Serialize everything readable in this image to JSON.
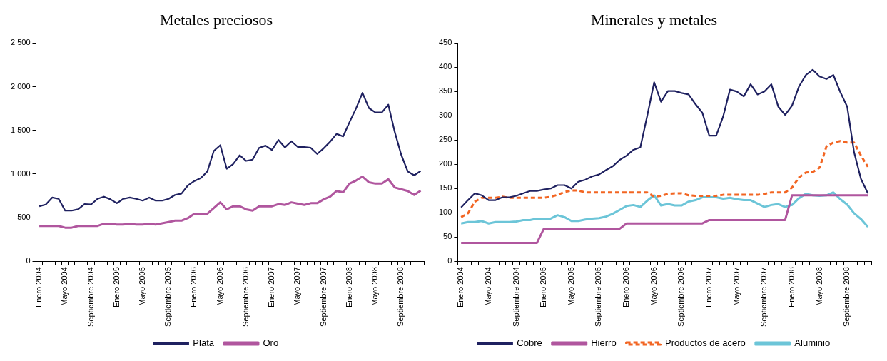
{
  "chart_data": [
    {
      "type": "line",
      "title": "Metales preciosos",
      "categories": [
        "Enero 2004",
        null,
        null,
        null,
        "Mayo 2004",
        null,
        null,
        null,
        "Septiembre 2004",
        null,
        null,
        null,
        "Enero 2005",
        null,
        null,
        null,
        "Mayo 2005",
        null,
        null,
        null,
        "Septiembre 2005",
        null,
        null,
        null,
        "Enero 2006",
        null,
        null,
        null,
        "Mayo 2006",
        null,
        null,
        null,
        "Septiembre 2006",
        null,
        null,
        null,
        "Enero 2007",
        null,
        null,
        null,
        "Mayo 2007",
        null,
        null,
        null,
        "Septiembre 2007",
        null,
        null,
        null,
        "Enero 2008",
        null,
        null,
        null,
        "Mayo 2008",
        null,
        null,
        null,
        "Septiembre 2008",
        null,
        null,
        null
      ],
      "series": [
        {
          "name": "Plata",
          "color": "#1f2160",
          "values": [
            630,
            650,
            730,
            715,
            580,
            580,
            595,
            655,
            650,
            715,
            740,
            710,
            665,
            715,
            730,
            715,
            695,
            730,
            695,
            695,
            715,
            760,
            775,
            870,
            920,
            955,
            1030,
            1265,
            1330,
            1060,
            1115,
            1215,
            1150,
            1165,
            1300,
            1325,
            1275,
            1390,
            1305,
            1375,
            1310,
            1310,
            1300,
            1230,
            1295,
            1370,
            1460,
            1430,
            1595,
            1750,
            1930,
            1755,
            1705,
            1705,
            1795,
            1480,
            1220,
            1030,
            985,
            1035
          ]
        },
        {
          "name": "Oro",
          "color": "#b0569e",
          "values": [
            405,
            405,
            405,
            405,
            385,
            385,
            405,
            405,
            405,
            405,
            430,
            430,
            420,
            420,
            430,
            420,
            420,
            430,
            420,
            435,
            450,
            465,
            465,
            495,
            545,
            545,
            545,
            610,
            675,
            595,
            630,
            630,
            595,
            580,
            630,
            630,
            630,
            655,
            645,
            675,
            660,
            645,
            665,
            665,
            710,
            740,
            805,
            790,
            890,
            925,
            970,
            905,
            890,
            890,
            940,
            845,
            825,
            805,
            760,
            810
          ]
        }
      ],
      "ylim": [
        0,
        2500
      ],
      "yticks": [
        0,
        500,
        {
          "value": 1000,
          "label": "1 000"
        },
        {
          "value": 1500,
          "label": "1 500"
        },
        {
          "value": 2000,
          "label": "2 000"
        },
        {
          "value": 2500,
          "label": "2 500"
        }
      ],
      "grid": false,
      "legend": "bottom",
      "marker": "none",
      "line_style": "solid"
    },
    {
      "type": "line",
      "title": "Minerales y metales",
      "categories": [
        "Enero 2004",
        null,
        null,
        null,
        "Mayo 2004",
        null,
        null,
        null,
        "Septiembre 2004",
        null,
        null,
        null,
        "Enero 2005",
        null,
        null,
        null,
        "Mayo 2005",
        null,
        null,
        null,
        "Septiembre 2005",
        null,
        null,
        null,
        "Enero 2006",
        null,
        null,
        null,
        "Mayo 2006",
        null,
        null,
        null,
        "Septiembre 2006",
        null,
        null,
        null,
        "Enero 2007",
        null,
        null,
        null,
        "Mayo 2007",
        null,
        null,
        null,
        "Septiembre 2007",
        null,
        null,
        null,
        "Enero 2008",
        null,
        null,
        null,
        "Mayo 2008",
        null,
        null,
        null,
        "Septiembre 2008",
        null,
        null,
        null
      ],
      "series": [
        {
          "name": "Cobre",
          "color": "#1f2160",
          "values": [
            111,
            126,
            140,
            136,
            126,
            126,
            132,
            132,
            135,
            140,
            145,
            145,
            148,
            150,
            157,
            157,
            150,
            164,
            168,
            175,
            179,
            188,
            196,
            209,
            218,
            230,
            235,
            300,
            369,
            329,
            351,
            351,
            347,
            344,
            324,
            306,
            259,
            259,
            298,
            354,
            350,
            340,
            365,
            344,
            350,
            365,
            319,
            302,
            321,
            360,
            384,
            395,
            381,
            376,
            384,
            349,
            319,
            225,
            170,
            140
          ]
        },
        {
          "name": "Hierro",
          "color": "#b0569e",
          "values": [
            38,
            38,
            38,
            38,
            38,
            38,
            38,
            38,
            38,
            38,
            38,
            38,
            67,
            67,
            67,
            67,
            67,
            67,
            67,
            67,
            67,
            67,
            67,
            67,
            78,
            78,
            78,
            78,
            78,
            78,
            78,
            78,
            78,
            78,
            78,
            78,
            85,
            85,
            85,
            85,
            85,
            85,
            85,
            85,
            85,
            85,
            85,
            85,
            136,
            136,
            136,
            136,
            136,
            136,
            136,
            136,
            136,
            136,
            136,
            136
          ]
        },
        {
          "name": "Productos de acero",
          "color": "#f26522",
          "line_style": "dashed",
          "values": [
            91,
            99,
            123,
            131,
            131,
            131,
            133,
            131,
            131,
            131,
            131,
            131,
            131,
            133,
            137,
            143,
            146,
            146,
            142,
            142,
            142,
            142,
            142,
            142,
            142,
            142,
            142,
            142,
            133,
            135,
            139,
            140,
            140,
            136,
            135,
            135,
            135,
            135,
            137,
            137,
            137,
            137,
            137,
            137,
            139,
            142,
            142,
            142,
            152,
            173,
            183,
            184,
            193,
            237,
            245,
            248,
            245,
            245,
            218,
            195
          ]
        },
        {
          "name": "Aluminio",
          "color": "#6cc5d8",
          "values": [
            78,
            81,
            81,
            83,
            78,
            81,
            81,
            81,
            82,
            85,
            85,
            88,
            88,
            88,
            95,
            91,
            83,
            83,
            86,
            88,
            89,
            92,
            98,
            106,
            114,
            116,
            112,
            125,
            136,
            115,
            118,
            115,
            115,
            123,
            126,
            132,
            132,
            132,
            129,
            131,
            128,
            126,
            126,
            119,
            112,
            116,
            118,
            112,
            116,
            130,
            139,
            136,
            135,
            136,
            142,
            128,
            117,
            99,
            87,
            71
          ]
        }
      ],
      "ylim": [
        0,
        450
      ],
      "yticks": [
        0,
        50,
        100,
        150,
        200,
        250,
        300,
        350,
        400,
        450
      ],
      "grid": false,
      "legend": "bottom",
      "marker": "none",
      "line_style": "solid"
    }
  ]
}
